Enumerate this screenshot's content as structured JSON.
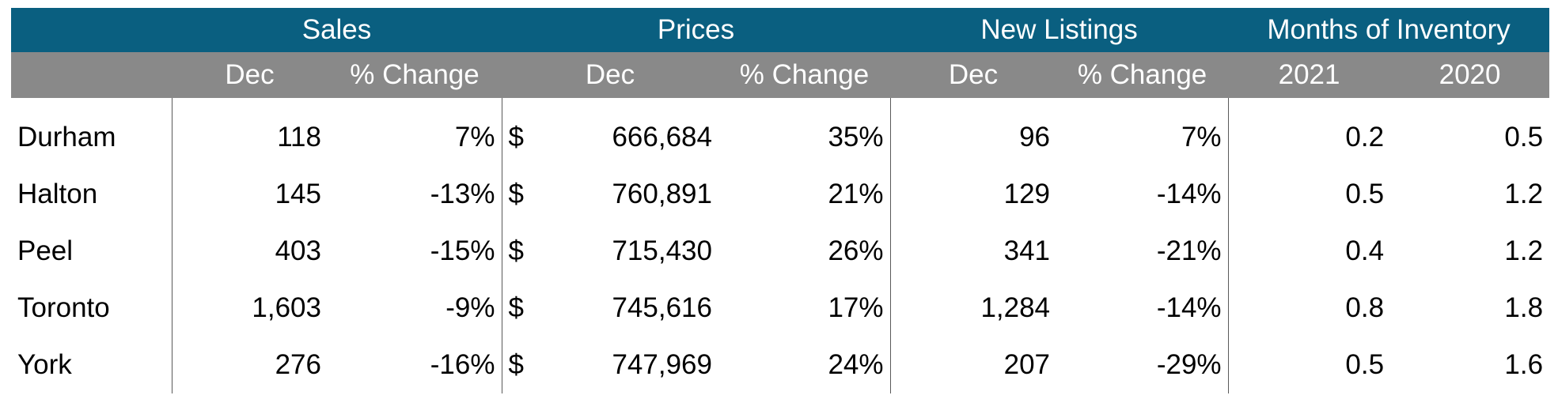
{
  "chart_data": {
    "type": "table",
    "group_headers": {
      "sales": "Sales",
      "prices": "Prices",
      "new_listings": "New Listings",
      "months_of_inventory": "Months of Inventory"
    },
    "sub_headers": {
      "sales_dec": "Dec",
      "sales_change": "% Change",
      "prices_dec": "Dec",
      "prices_change": "% Change",
      "listings_dec": "Dec",
      "listings_change": "% Change",
      "moi_2021": "2021",
      "moi_2020": "2020"
    },
    "currency_symbol": "$",
    "rows": [
      {
        "region": "Durham",
        "sales_dec": "118",
        "sales_change": "7%",
        "price_dec": "666,684",
        "price_change": "35%",
        "listings_dec": "96",
        "listings_change": "7%",
        "moi_2021": "0.2",
        "moi_2020": "0.5"
      },
      {
        "region": "Halton",
        "sales_dec": "145",
        "sales_change": "-13%",
        "price_dec": "760,891",
        "price_change": "21%",
        "listings_dec": "129",
        "listings_change": "-14%",
        "moi_2021": "0.5",
        "moi_2020": "1.2"
      },
      {
        "region": "Peel",
        "sales_dec": "403",
        "sales_change": "-15%",
        "price_dec": "715,430",
        "price_change": "26%",
        "listings_dec": "341",
        "listings_change": "-21%",
        "moi_2021": "0.4",
        "moi_2020": "1.2"
      },
      {
        "region": "Toronto",
        "sales_dec": "1,603",
        "sales_change": "-9%",
        "price_dec": "745,616",
        "price_change": "17%",
        "listings_dec": "1,284",
        "listings_change": "-14%",
        "moi_2021": "0.8",
        "moi_2020": "1.8"
      },
      {
        "region": "York",
        "sales_dec": "276",
        "sales_change": "-16%",
        "price_dec": "747,969",
        "price_change": "24%",
        "listings_dec": "207",
        "listings_change": "-29%",
        "moi_2021": "0.5",
        "moi_2020": "1.6"
      }
    ],
    "colors": {
      "group_header_bg": "#0a5f80",
      "sub_header_bg": "#898989",
      "header_text": "#ffffff",
      "body_text": "#000000"
    }
  }
}
